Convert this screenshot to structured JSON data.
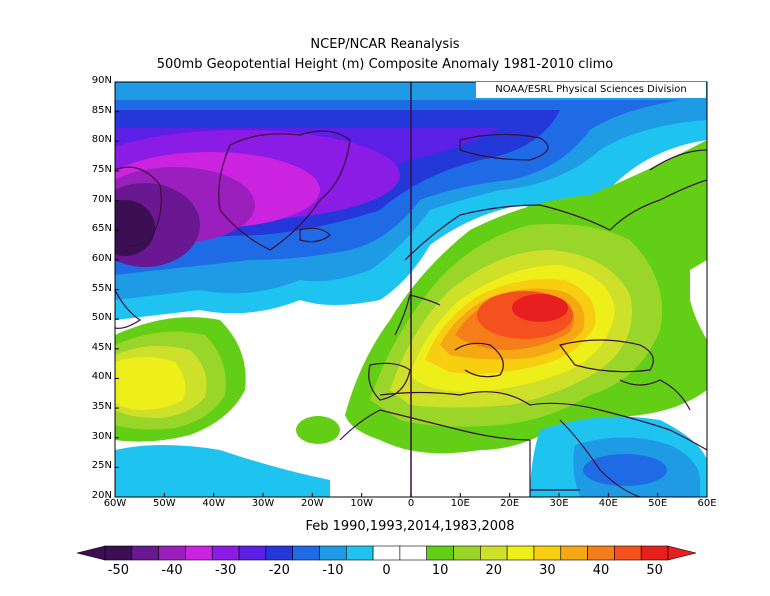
{
  "title_line1": "NCEP/NCAR Reanalysis",
  "title_line2": "500mb Geopotential Height (m) Composite Anomaly 1981-2010 climo",
  "credit": "NOAA/ESRL Physical Sciences Division",
  "subtitle": "Feb 1990,1993,2014,1983,2008",
  "lat_labels": [
    "90N",
    "85N",
    "80N",
    "75N",
    "70N",
    "65N",
    "60N",
    "55N",
    "50N",
    "45N",
    "40N",
    "35N",
    "30N",
    "25N",
    "20N"
  ],
  "lon_labels": [
    "60W",
    "50W",
    "40W",
    "30W",
    "20W",
    "10W",
    "0",
    "10E",
    "20E",
    "30E",
    "40E",
    "50E",
    "60E"
  ],
  "colorbar": {
    "labels": [
      "-50",
      "-40",
      "-30",
      "-20",
      "-10",
      "0",
      "10",
      "20",
      "30",
      "40",
      "50"
    ],
    "colors": [
      "#3c0e54",
      "#6a1891",
      "#9b1fbd",
      "#cc23e0",
      "#8a1ce6",
      "#5b1fe6",
      "#2438d9",
      "#1f6be6",
      "#1f9be6",
      "#1fc3ef",
      "#ffffff",
      "#ffffff",
      "#62cf16",
      "#9ad62a",
      "#cfe02a",
      "#eeee1a",
      "#f7cf10",
      "#f5a814",
      "#f57e1a",
      "#f5511f",
      "#e81f1f"
    ]
  },
  "chart_data": {
    "type": "heatmap",
    "variable": "500mb Geopotential Height (m) Composite Anomaly",
    "lon_range": [
      -60,
      60
    ],
    "lat_range": [
      20,
      90
    ],
    "contour_interval": 5,
    "level_range": [
      -50,
      50
    ],
    "anomaly_centers": [
      {
        "name": "negative",
        "lon": -57,
        "lat": 66,
        "value": -50
      },
      {
        "name": "negative",
        "lon": -40,
        "lat": 72,
        "value": -40
      },
      {
        "name": "positive",
        "lon": 26,
        "lat": 52,
        "value": 45
      },
      {
        "name": "positive",
        "lon": -55,
        "lat": 40,
        "value": 25
      },
      {
        "name": "negative",
        "lon": 42,
        "lat": 24,
        "value": -20
      }
    ]
  }
}
